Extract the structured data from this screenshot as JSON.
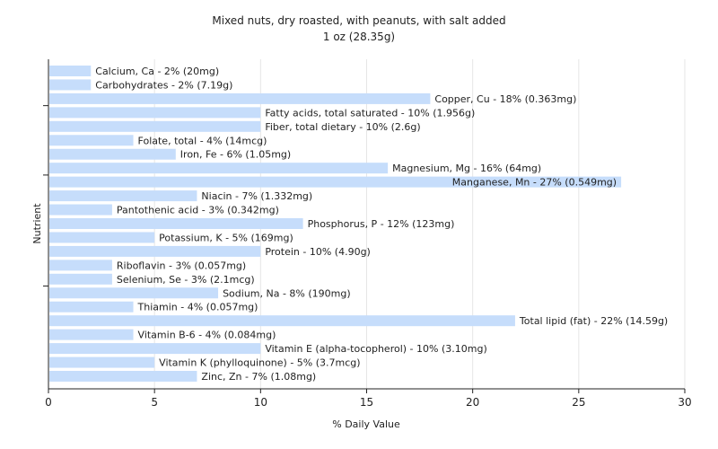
{
  "chart_data": {
    "type": "bar",
    "orientation": "horizontal",
    "title": "Mixed nuts, dry roasted, with peanuts, with salt added",
    "subtitle": "1 oz (28.35g)",
    "xlabel": "% Daily Value",
    "ylabel": "Nutrient",
    "xlim": [
      0,
      30
    ],
    "xticks": [
      0,
      5,
      10,
      15,
      20,
      25,
      30
    ],
    "grid": "vertical",
    "bar_color": "#c6ddfb",
    "categories": [
      "Calcium, Ca",
      "Carbohydrates",
      "Copper, Cu",
      "Fatty acids, total saturated",
      "Fiber, total dietary",
      "Folate, total",
      "Iron, Fe",
      "Magnesium, Mg",
      "Manganese, Mn",
      "Niacin",
      "Pantothenic acid",
      "Phosphorus, P",
      "Potassium, K",
      "Protein",
      "Riboflavin",
      "Selenium, Se",
      "Sodium, Na",
      "Thiamin",
      "Total lipid (fat)",
      "Vitamin B-6",
      "Vitamin E (alpha-tocopherol)",
      "Vitamin K (phylloquinone)",
      "Zinc, Zn"
    ],
    "values": [
      2,
      2,
      18,
      10,
      10,
      4,
      6,
      16,
      27,
      7,
      3,
      12,
      5,
      10,
      3,
      3,
      8,
      4,
      22,
      4,
      10,
      5,
      7
    ],
    "labels": [
      "Calcium, Ca - 2% (20mg)",
      "Carbohydrates - 2% (7.19g)",
      "Copper, Cu - 18% (0.363mg)",
      "Fatty acids, total saturated - 10% (1.956g)",
      "Fiber, total dietary - 10% (2.6g)",
      "Folate, total - 4% (14mcg)",
      "Iron, Fe - 6% (1.05mg)",
      "Magnesium, Mg - 16% (64mg)",
      "Manganese, Mn - 27% (0.549mg)",
      "Niacin - 7% (1.332mg)",
      "Pantothenic acid - 3% (0.342mg)",
      "Phosphorus, P - 12% (123mg)",
      "Potassium, K - 5% (169mg)",
      "Protein - 10% (4.90g)",
      "Riboflavin - 3% (0.057mg)",
      "Selenium, Se - 3% (2.1mcg)",
      "Sodium, Na - 8% (190mg)",
      "Thiamin - 4% (0.057mg)",
      "Total lipid (fat) - 22% (14.59g)",
      "Vitamin B-6 - 4% (0.084mg)",
      "Vitamin E (alpha-tocopherol) - 10% (3.10mg)",
      "Vitamin K (phylloquinone) - 5% (3.7mcg)",
      "Zinc, Zn - 7% (1.08mg)"
    ]
  }
}
